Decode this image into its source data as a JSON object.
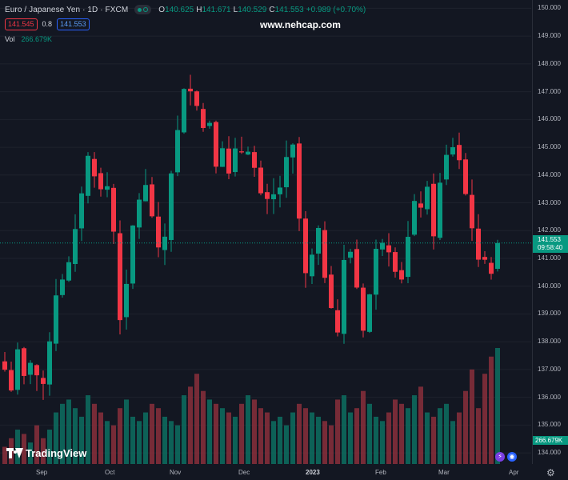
{
  "header": {
    "symbol": "Euro / Japanese Yen · 1D · FXCM",
    "ohlc": [
      {
        "key": "O",
        "value": "140.625"
      },
      {
        "key": "H",
        "value": "141.671"
      },
      {
        "key": "L",
        "value": "140.529"
      },
      {
        "key": "C",
        "value": "141.553"
      }
    ],
    "change": "+0.989 (+0.70%)",
    "bid": "141.545",
    "spread": "0.8",
    "ask": "141.553",
    "volume_label": "Vol",
    "volume_value": "266.679K",
    "watermark": "www.nehcap.com"
  },
  "price_tag": {
    "price": "141.553",
    "countdown": "09:58:40"
  },
  "volume_tag": "266.679K",
  "logo_text": "TradingView",
  "icons": {
    "flash": "lightning-icon",
    "globe": "globe-icon",
    "settings": "gear-icon"
  },
  "colors": {
    "background": "#131722",
    "up": "#089981",
    "down": "#f23645",
    "up_volume": "#0d6e60",
    "down_volume": "#8a2f3b"
  },
  "chart_data": {
    "type": "candlestick",
    "y_axis_ticks": [
      "150.000",
      "149.000",
      "148.000",
      "147.000",
      "146.000",
      "145.000",
      "144.000",
      "143.000",
      "142.000",
      "141.000",
      "140.000",
      "139.000",
      "138.000",
      "137.000",
      "136.000",
      "135.000",
      "134.000"
    ],
    "x_axis_ticks": [
      "Sep",
      "Oct",
      "Nov",
      "Dec",
      "2023",
      "Feb",
      "Mar",
      "Apr"
    ],
    "ylim": [
      133.6,
      150.3
    ],
    "close_path": [
      [
        0,
        137.0
      ],
      [
        3,
        136.4
      ],
      [
        6,
        137.5
      ],
      [
        9,
        136.6
      ],
      [
        12,
        137.4
      ],
      [
        15,
        136.8
      ],
      [
        18,
        136.2
      ],
      [
        21,
        138.2
      ],
      [
        24,
        139.8
      ],
      [
        27,
        140.4
      ],
      [
        30,
        140.7
      ],
      [
        33,
        141.8
      ],
      [
        36,
        143.5
      ],
      [
        39,
        144.6
      ],
      [
        42,
        144.2
      ],
      [
        45,
        143.4
      ],
      [
        48,
        143.6
      ],
      [
        51,
        142.0
      ],
      [
        54,
        139.0
      ],
      [
        57,
        139.8
      ],
      [
        60,
        142.1
      ],
      [
        63,
        143.2
      ],
      [
        66,
        143.5
      ],
      [
        69,
        142.6
      ],
      [
        72,
        141.1
      ],
      [
        75,
        141.8
      ],
      [
        78,
        144.2
      ],
      [
        81,
        145.5
      ],
      [
        84,
        146.9
      ],
      [
        87,
        147.3
      ],
      [
        90,
        146.7
      ],
      [
        93,
        145.7
      ],
      [
        96,
        146.0
      ],
      [
        99,
        144.6
      ],
      [
        102,
        145.2
      ],
      [
        105,
        143.9
      ],
      [
        108,
        144.7
      ],
      [
        111,
        144.9
      ],
      [
        114,
        145.1
      ],
      [
        117,
        144.2
      ],
      [
        120,
        143.1
      ],
      [
        123,
        142.9
      ],
      [
        126,
        143.2
      ],
      [
        129,
        143.6
      ],
      [
        132,
        144.4
      ],
      [
        135,
        144.9
      ],
      [
        138,
        142.4
      ],
      [
        141,
        140.3
      ],
      [
        144,
        141.0
      ],
      [
        147,
        141.8
      ],
      [
        150,
        140.5
      ],
      [
        153,
        139.5
      ],
      [
        156,
        138.4
      ],
      [
        159,
        140.8
      ],
      [
        162,
        141.3
      ],
      [
        165,
        140.0
      ],
      [
        168,
        138.6
      ],
      [
        171,
        139.7
      ],
      [
        174,
        141.2
      ],
      [
        177,
        141.8
      ],
      [
        180,
        141.5
      ],
      [
        183,
        140.8
      ],
      [
        186,
        140.4
      ],
      [
        189,
        141.7
      ],
      [
        192,
        142.8
      ],
      [
        195,
        143.0
      ],
      [
        198,
        143.3
      ],
      [
        201,
        142.0
      ],
      [
        204,
        143.6
      ],
      [
        207,
        144.6
      ],
      [
        210,
        145.1
      ],
      [
        213,
        144.6
      ],
      [
        216,
        143.3
      ],
      [
        219,
        142.3
      ],
      [
        222,
        140.7
      ],
      [
        225,
        141.2
      ],
      [
        228,
        140.6
      ],
      [
        231,
        141.55
      ]
    ],
    "volumes": [
      4,
      6,
      8,
      7,
      5,
      9,
      6,
      8,
      12,
      14,
      15,
      13,
      11,
      16,
      14,
      12,
      10,
      9,
      13,
      15,
      11,
      10,
      12,
      14,
      13,
      11,
      10,
      9,
      16,
      18,
      21,
      17,
      15,
      14,
      13,
      12,
      11,
      14,
      16,
      15,
      13,
      12,
      10,
      11,
      9,
      12,
      14,
      13,
      12,
      11,
      10,
      9,
      15,
      16,
      12,
      13,
      17,
      14,
      11,
      10,
      12,
      15,
      14,
      13,
      16,
      18,
      12,
      11,
      13,
      14,
      10,
      12,
      17,
      22,
      13,
      21,
      25,
      27
    ]
  }
}
